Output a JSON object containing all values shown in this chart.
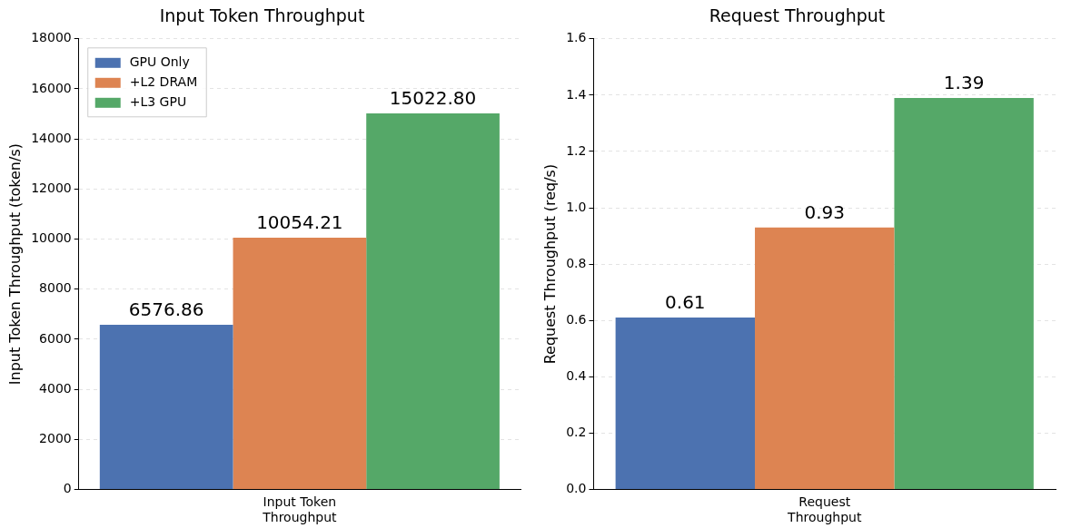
{
  "chart_data": [
    {
      "type": "bar",
      "title": "Input Token Throughput",
      "ylabel": "Input Token Throughput (token/s)",
      "categories": [
        "Input Token Throughput"
      ],
      "series": [
        {
          "name": "GPU Only",
          "color": "#4c72b0",
          "values": [
            6576.86
          ],
          "value_labels": [
            "6576.86"
          ]
        },
        {
          "name": "+L2 DRAM",
          "color": "#dd8452",
          "values": [
            10054.21
          ],
          "value_labels": [
            "10054.21"
          ]
        },
        {
          "name": "+L3 GPU",
          "color": "#55a868",
          "values": [
            15022.8
          ],
          "value_labels": [
            "15022.80"
          ]
        }
      ],
      "ylim": [
        0,
        18000
      ],
      "yticks": [
        0,
        2000,
        4000,
        6000,
        8000,
        10000,
        12000,
        14000,
        16000,
        18000
      ],
      "grid": "y",
      "legend": "top left"
    },
    {
      "type": "bar",
      "title": "Request Throughput",
      "ylabel": "Request Throughput (req/s)",
      "categories": [
        "Request Throughput"
      ],
      "series": [
        {
          "color": "#4c72b0",
          "values": [
            0.61
          ]
        },
        {
          "color": "#dd8452",
          "values": [
            0.93
          ]
        },
        {
          "color": "#55a868",
          "values": [
            1.39
          ]
        }
      ],
      "ylim": [
        0,
        1.6
      ],
      "yticks": [
        {
          "value": 0,
          "label": "0.0"
        },
        {
          "value": 0.2,
          "label": "0.2"
        },
        {
          "value": 0.4,
          "label": "0.4"
        },
        {
          "value": 0.6,
          "label": "0.6"
        },
        {
          "value": 0.8,
          "label": "0.8"
        },
        {
          "value": 1.0,
          "label": "1.0"
        },
        {
          "value": 1.2,
          "label": "1.2"
        },
        {
          "value": 1.4,
          "label": "1.4"
        },
        {
          "value": 1.6,
          "label": "1.6"
        }
      ],
      "grid": "y",
      "data_labels": true
    }
  ]
}
